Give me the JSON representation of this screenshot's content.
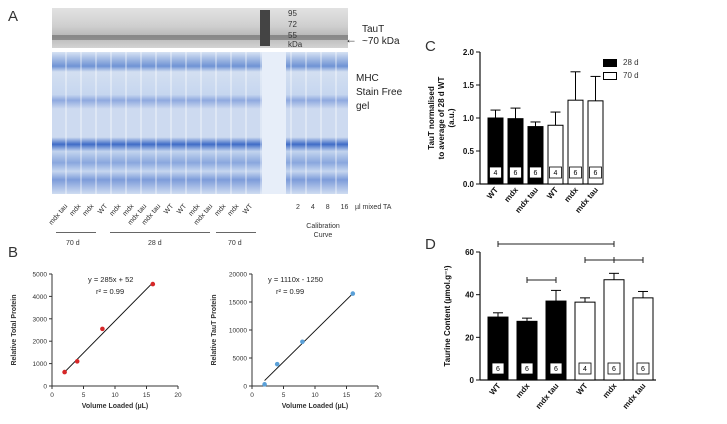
{
  "panels": {
    "a": "A",
    "b": "B",
    "c": "C",
    "d": "D"
  },
  "panel_a": {
    "ladder": [
      "95",
      "72",
      "55",
      "kDa"
    ],
    "taut_label_1": "TauT",
    "taut_label_2": "~70 kDa",
    "mhc_1": "MHC",
    "mhc_2": "Stain Free",
    "mhc_3": "gel",
    "lanes": [
      "mdx tau",
      "mdx",
      "mdx",
      "WT",
      "mdx",
      "mdx",
      "mdx tau",
      "mdx tau",
      "WT",
      "WT",
      "mdx",
      "mdx tau",
      "mdx",
      "mdx",
      "WT"
    ],
    "cal_lanes": [
      "2",
      "4",
      "8",
      "16"
    ],
    "cal_unit": "µl mixed TA",
    "groups": [
      "70 d",
      "28 d",
      "70 d"
    ],
    "calibration_1": "Calibration",
    "calibration_2": "Curve"
  },
  "panel_b": {
    "left": {
      "eq": "y = 285x + 52",
      "r2": "r² = 0.99"
    },
    "right": {
      "eq": "y = 1110x - 1250",
      "r2": "r² = 0.99"
    }
  },
  "panel_c": {
    "legend": [
      "28 d",
      "70 d"
    ],
    "ylabel_1": "TauT normalised",
    "ylabel_2": "to average of 28 d WT",
    "ylabel_3": "(a.u.)"
  },
  "panel_d": {
    "ylabel": "Taurine Content  (µmol.g⁻¹)"
  },
  "colors": {
    "black_bar": "#000000",
    "white_bar": "#ffffff",
    "red_pt": "#d62728",
    "blue_pt": "#5aa0d8"
  },
  "chart_data": [
    {
      "id": "b-left",
      "type": "scatter",
      "x": [
        2,
        4,
        8,
        16
      ],
      "y": [
        620,
        1100,
        2550,
        4550
      ],
      "fit": {
        "slope": 285,
        "intercept": 52
      },
      "xlabel": "Volume Loaded (µL)",
      "ylabel": "Relative Total Protein",
      "xlim": [
        0,
        20
      ],
      "ylim": [
        0,
        5000
      ],
      "xticks": [
        0,
        5,
        10,
        15,
        20
      ],
      "yticks": [
        0,
        1000,
        2000,
        3000,
        4000,
        5000
      ]
    },
    {
      "id": "b-right",
      "type": "scatter",
      "x": [
        2,
        4,
        8,
        16
      ],
      "y": [
        300,
        3900,
        7900,
        16500
      ],
      "fit": {
        "slope": 1110,
        "intercept": -1250
      },
      "xlabel": "Volume Loaded (µL)",
      "ylabel": "Relative TauT Protein",
      "xlim": [
        0,
        20
      ],
      "ylim": [
        0,
        20000
      ],
      "xticks": [
        0,
        5,
        10,
        15,
        20
      ],
      "yticks": [
        0,
        5000,
        10000,
        15000,
        20000
      ]
    },
    {
      "id": "c",
      "type": "bar",
      "categories": [
        "WT",
        "mdx",
        "mdx tau",
        "WT",
        "mdx",
        "mdx tau"
      ],
      "values": [
        1.0,
        0.99,
        0.87,
        0.89,
        1.27,
        1.26
      ],
      "errors": [
        0.12,
        0.16,
        0.07,
        0.2,
        0.43,
        0.37
      ],
      "n": [
        "4",
        "6",
        "6",
        "4",
        "6",
        "6"
      ],
      "groups": [
        "28 d",
        "28 d",
        "28 d",
        "70 d",
        "70 d",
        "70 d"
      ],
      "ylim": [
        0,
        2.0
      ],
      "yticks": [
        "0.0",
        "0.5",
        "1.0",
        "1.5",
        "2.0"
      ]
    },
    {
      "id": "d",
      "type": "bar",
      "categories": [
        "WT",
        "mdx",
        "mdx tau",
        "WT",
        "mdx",
        "mdx tau"
      ],
      "values": [
        29.5,
        27.5,
        37,
        36.5,
        47,
        38.5
      ],
      "errors": [
        2,
        1.5,
        5,
        2,
        3,
        3
      ],
      "n": [
        "6",
        "6",
        "6",
        "4",
        "6",
        "6"
      ],
      "groups": [
        "28 d",
        "28 d",
        "28 d",
        "70 d",
        "70 d",
        "70 d"
      ],
      "ylim": [
        0,
        60
      ],
      "yticks": [
        "0",
        "20",
        "40",
        "60"
      ],
      "significance": [
        [
          1,
          2
        ],
        [
          3,
          4
        ],
        [
          4,
          5
        ],
        [
          0,
          4
        ]
      ]
    }
  ]
}
